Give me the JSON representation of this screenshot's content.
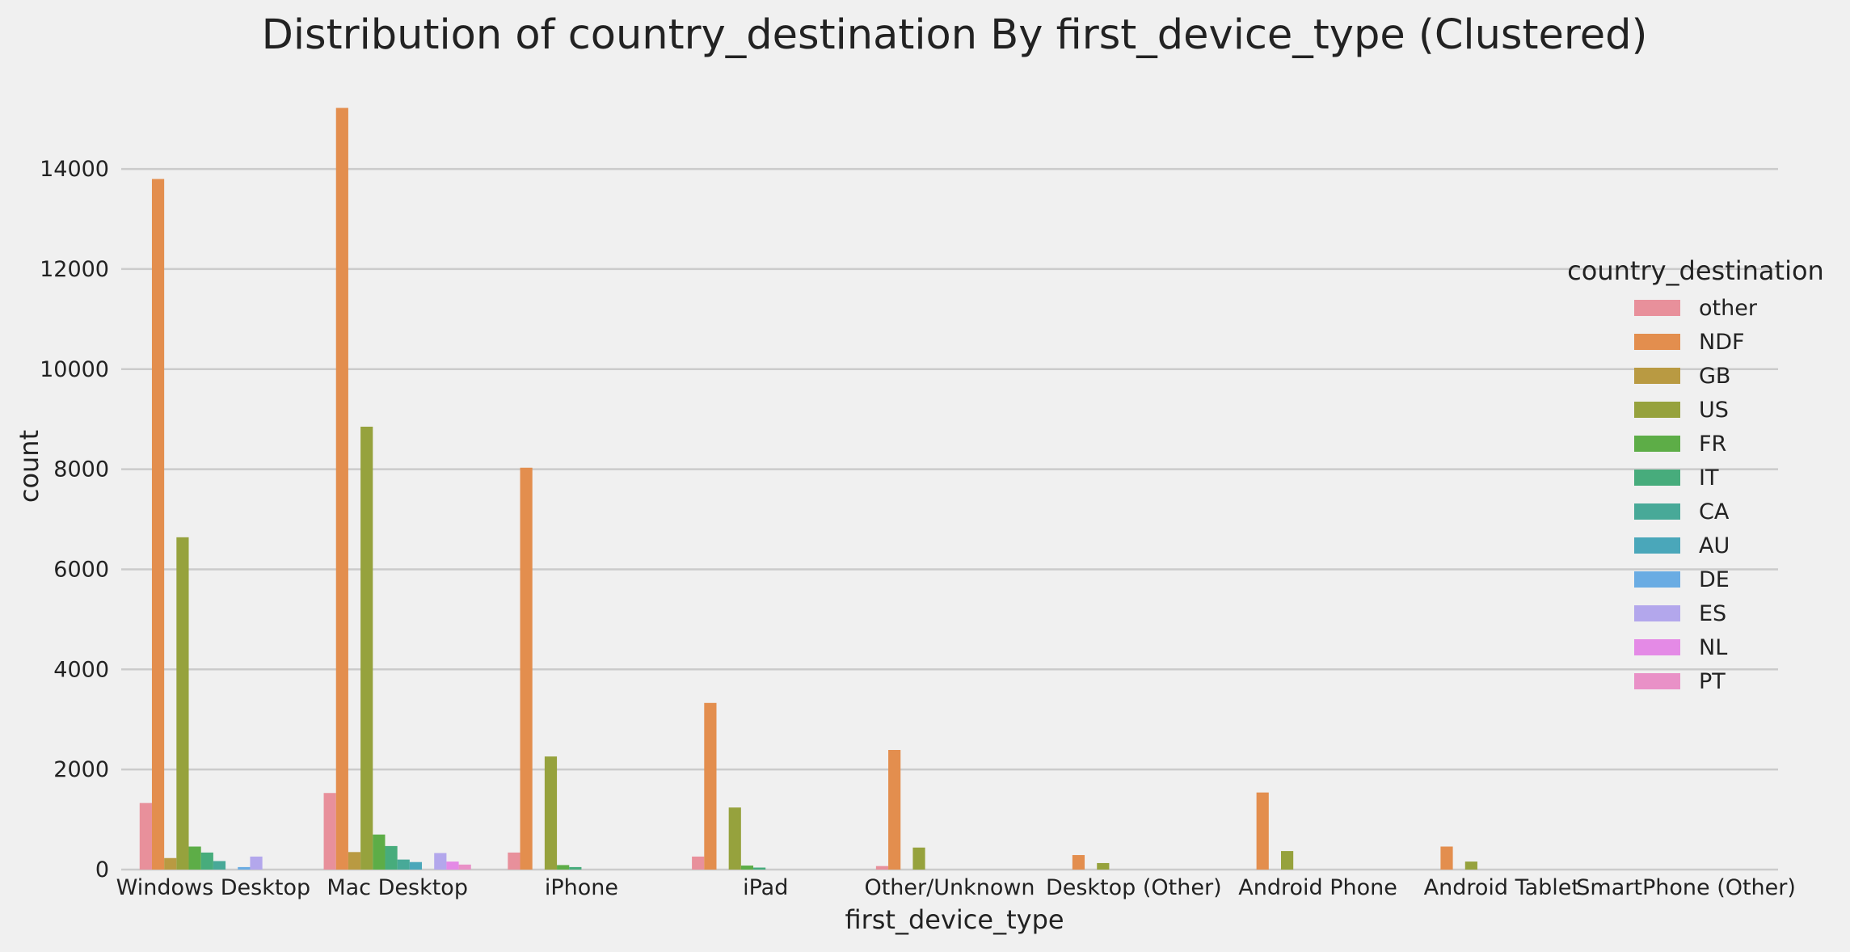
{
  "chart_data": {
    "type": "bar",
    "title": "Distribution of country_destination By first_device_type (Clustered)",
    "xlabel": "first_device_type",
    "ylabel": "count",
    "ylim": [
      0,
      15600
    ],
    "yticks": [
      0,
      2000,
      4000,
      6000,
      8000,
      10000,
      12000,
      14000
    ],
    "grid": true,
    "legend_title": "country_destination",
    "legend_position": "right",
    "categories": [
      "Windows Desktop",
      "Mac Desktop",
      "iPhone",
      "iPad",
      "Other/Unknown",
      "Desktop (Other)",
      "Android Phone",
      "Android Tablet",
      "SmartPhone (Other)"
    ],
    "series": [
      {
        "name": "other",
        "color": "#e8909b",
        "values": [
          1330,
          1530,
          340,
          260,
          70,
          0,
          0,
          0,
          0
        ]
      },
      {
        "name": "NDF",
        "color": "#e38e4e",
        "values": [
          13800,
          15220,
          8030,
          3330,
          2390,
          290,
          1540,
          460,
          0
        ]
      },
      {
        "name": "GB",
        "color": "#b99a42",
        "values": [
          230,
          350,
          0,
          0,
          0,
          0,
          0,
          0,
          0
        ]
      },
      {
        "name": "US",
        "color": "#96a23d",
        "values": [
          6640,
          8850,
          2260,
          1240,
          440,
          130,
          370,
          160,
          0
        ]
      },
      {
        "name": "FR",
        "color": "#5dad47",
        "values": [
          460,
          700,
          90,
          80,
          0,
          0,
          0,
          0,
          0
        ]
      },
      {
        "name": "IT",
        "color": "#47ac7c",
        "values": [
          340,
          470,
          50,
          40,
          0,
          0,
          0,
          0,
          0
        ]
      },
      {
        "name": "CA",
        "color": "#48a998",
        "values": [
          170,
          200,
          0,
          0,
          0,
          0,
          0,
          0,
          0
        ]
      },
      {
        "name": "AU",
        "color": "#4aa7ba",
        "values": [
          0,
          150,
          0,
          0,
          0,
          0,
          0,
          0,
          0
        ]
      },
      {
        "name": "DE",
        "color": "#6aace3",
        "values": [
          50,
          0,
          0,
          0,
          0,
          0,
          0,
          0,
          0
        ]
      },
      {
        "name": "ES",
        "color": "#b3a7ec",
        "values": [
          260,
          330,
          0,
          0,
          0,
          0,
          0,
          0,
          0
        ]
      },
      {
        "name": "NL",
        "color": "#e48ae6",
        "values": [
          0,
          160,
          0,
          0,
          0,
          0,
          0,
          0,
          0
        ]
      },
      {
        "name": "PT",
        "color": "#e991c7",
        "values": [
          0,
          100,
          0,
          0,
          0,
          0,
          0,
          0,
          0
        ]
      }
    ]
  }
}
